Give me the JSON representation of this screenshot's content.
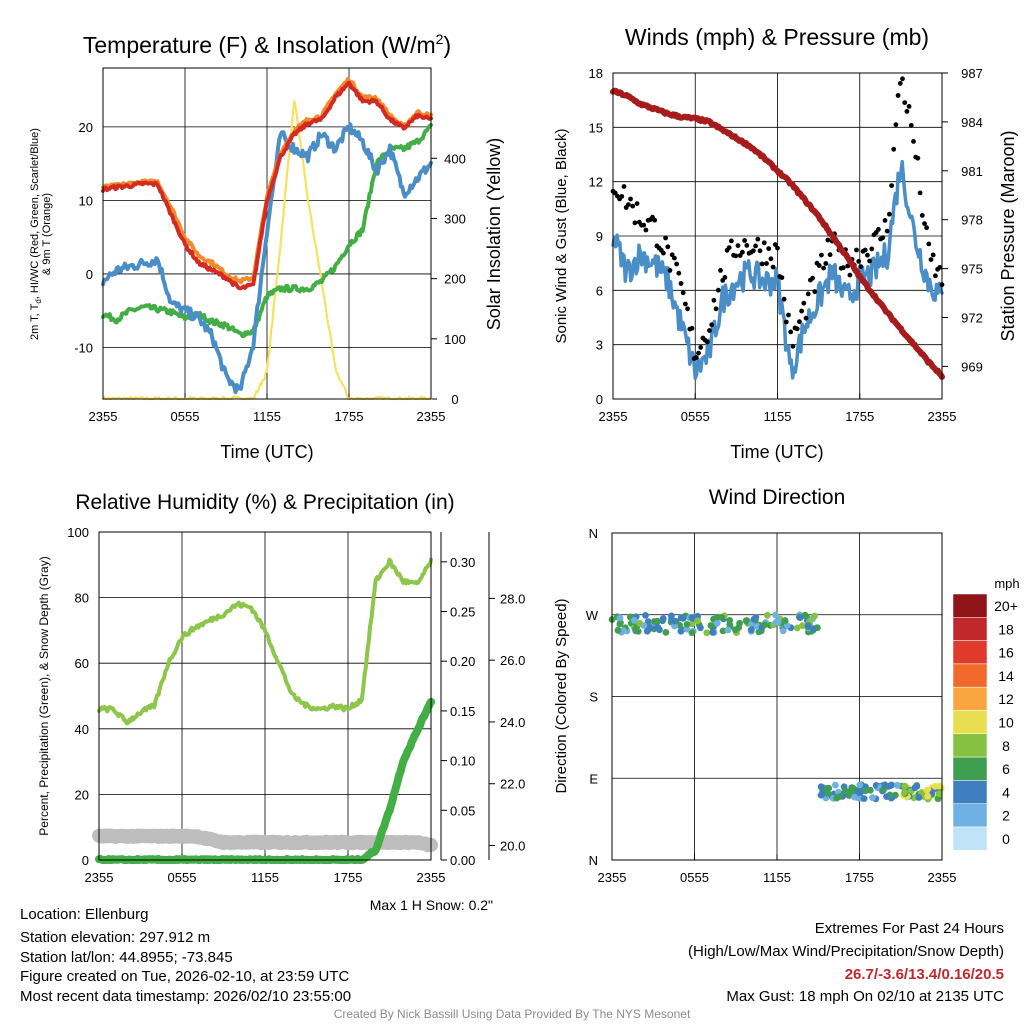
{
  "colors": {
    "red": "#d42a24",
    "orange": "#f38a2a",
    "blue": "#4a8ec8",
    "green": "#44ae46",
    "yellow": "#f7e15e",
    "maroon": "#a61c1c",
    "lightgreen": "#8dc64a",
    "gray": "#bdbdbd",
    "extremes": "#c0282c",
    "credit": "#8c8c8c"
  },
  "time_ticks": [
    "2355",
    "0555",
    "1155",
    "1755",
    "2355"
  ],
  "chart_data": [
    {
      "id": "temp",
      "type": "line",
      "title": "Temperature (F) & Insolation (W/m",
      "title_sup": "2",
      "title_end": ")",
      "xlabel": "Time (UTC)",
      "ylabel_lines": [
        "2m T, T",
        "d",
        ", HI/WC (Red, Green, Scarlet/Blue)",
        "& 9m T (Orange)"
      ],
      "y2label": "Solar Insolation (Yellow)",
      "ylim": [
        -17,
        28
      ],
      "y2lim": [
        0,
        550
      ],
      "yticks": [
        -10,
        0,
        10,
        20
      ],
      "y2ticks": [
        0,
        100,
        200,
        300,
        400
      ],
      "x": [
        0,
        1,
        2,
        3,
        4,
        5,
        6,
        7,
        8,
        9,
        10,
        11,
        12,
        13,
        14,
        15,
        16,
        17,
        18,
        19,
        20,
        21,
        22,
        23,
        24
      ],
      "series": [
        {
          "name": "2m T",
          "color": "red",
          "axis": "y1",
          "values": [
            11.5,
            11.8,
            12,
            12.3,
            12.2,
            8,
            4,
            1.5,
            0.5,
            -0.5,
            -2,
            -1.5,
            10,
            16,
            19,
            20.5,
            21,
            24,
            26,
            23.5,
            23.5,
            21,
            19.8,
            21.5,
            21
          ]
        },
        {
          "name": "9m T",
          "color": "orange",
          "axis": "y1",
          "values": [
            11.8,
            12,
            12.3,
            12.5,
            12.5,
            9,
            5,
            2.5,
            1.5,
            0,
            -1,
            -0.5,
            10.5,
            16.5,
            19.5,
            21,
            21.5,
            24.5,
            26.5,
            24,
            24,
            21.5,
            20,
            22,
            21.5
          ]
        },
        {
          "name": "HI/WC",
          "color": "blue",
          "axis": "y1",
          "values": [
            -1,
            0.5,
            1,
            1.5,
            2,
            -4,
            -5,
            -6,
            -8.5,
            -14,
            -16,
            -9.5,
            6,
            19,
            17,
            16,
            19,
            17,
            20,
            18,
            14,
            17,
            11,
            13,
            15
          ]
        },
        {
          "name": "Td",
          "color": "green",
          "axis": "y1",
          "values": [
            -5.5,
            -6.2,
            -5,
            -4.5,
            -4.8,
            -5.2,
            -6,
            -5.5,
            -6.5,
            -7,
            -8.2,
            -7.8,
            -3,
            -2,
            -2,
            -2,
            -1,
            1,
            4,
            6,
            15,
            17,
            17,
            18,
            20
          ]
        },
        {
          "name": "Insolation",
          "color": "yellow",
          "axis": "y2",
          "values": [
            0,
            0,
            0,
            0,
            0,
            0,
            0,
            0,
            0,
            0,
            0,
            0,
            45,
            260,
            498,
            330,
            195,
            50,
            0,
            0,
            0,
            0,
            0,
            0,
            0
          ]
        }
      ]
    },
    {
      "id": "wind",
      "type": "line",
      "title": "Winds (mph) & Pressure (mb)",
      "xlabel": "Time (UTC)",
      "ylabel": "Sonic Wind & Gust (Blue, Black)",
      "y2label": "Station Pressure (Maroon)",
      "ylim": [
        0,
        18
      ],
      "y2lim": [
        967,
        987
      ],
      "yticks": [
        0,
        3,
        6,
        9,
        12,
        15,
        18
      ],
      "y2ticks": [
        969,
        972,
        975,
        978,
        981,
        984,
        987
      ],
      "x": [
        0,
        1,
        2,
        3,
        4,
        5,
        6,
        7,
        8,
        9,
        10,
        11,
        12,
        13,
        14,
        15,
        16,
        17,
        18,
        19,
        20,
        21,
        22,
        23,
        24
      ],
      "series": [
        {
          "name": "Sonic Wind",
          "color": "blue",
          "axis": "y1",
          "values": [
            9,
            7,
            8,
            7.5,
            6.5,
            4,
            1.5,
            2.5,
            5.5,
            6.5,
            7,
            6.5,
            6.5,
            1.5,
            4,
            5.5,
            7,
            5.5,
            6.5,
            7,
            8,
            13,
            9,
            6.5,
            5.5
          ]
        },
        {
          "name": "Gust",
          "color": "black",
          "axis": "y1",
          "values": [
            12,
            11,
            10,
            9.5,
            8,
            6,
            2.5,
            4,
            7,
            8.5,
            8.5,
            8.2,
            8,
            3,
            5,
            7,
            8.5,
            7.5,
            8,
            8.5,
            9.5,
            18,
            14,
            8,
            6.5
          ]
        },
        {
          "name": "Pressure",
          "color": "maroon",
          "axis": "y2",
          "values": [
            985.9,
            985.6,
            985.1,
            984.8,
            984.5,
            984.3,
            984.2,
            984,
            983.5,
            983,
            982.5,
            981.8,
            981,
            980.2,
            979.2,
            978.2,
            977,
            975.8,
            974.5,
            973.4,
            972.3,
            971.3,
            970.3,
            969.3,
            968.4
          ]
        }
      ]
    },
    {
      "id": "rh",
      "type": "line",
      "title": "Relative Humidity (%) & Precipitation (in)",
      "ylabel": "Percent, Precipitation (Green), & Snow Depth (Gray)",
      "ylim": [
        0,
        100
      ],
      "y2lim": [
        0,
        0.33
      ],
      "y3lim": [
        19.53,
        30.15
      ],
      "yticks": [
        0,
        20,
        40,
        60,
        80,
        100
      ],
      "y2ticks": [
        "0.00",
        "0.05",
        "0.10",
        "0.15",
        "0.20",
        "0.25",
        "0.30"
      ],
      "y3ticks": [
        "20.0",
        "22.0",
        "24.0",
        "26.0",
        "28.0"
      ],
      "x": [
        0,
        1,
        2,
        3,
        4,
        5,
        6,
        7,
        8,
        9,
        10,
        11,
        12,
        13,
        14,
        15,
        16,
        17,
        18,
        19,
        20,
        21,
        22,
        23,
        24
      ],
      "series": [
        {
          "name": "RH",
          "color": "lightgreen",
          "axis": "y1",
          "values": [
            46,
            46,
            42,
            45,
            47,
            60,
            68,
            71,
            73,
            75,
            78,
            77,
            70,
            60,
            50,
            47,
            46,
            47,
            46,
            49,
            85,
            91,
            85,
            84,
            91
          ]
        },
        {
          "name": "Precipitation",
          "color": "green",
          "axis": "y2",
          "values": [
            0,
            0,
            0,
            0,
            0,
            0,
            0,
            0,
            0,
            0,
            0,
            0,
            0,
            0,
            0,
            0,
            0,
            0,
            0,
            0,
            0.01,
            0.05,
            0.1,
            0.13,
            0.16
          ]
        },
        {
          "name": "Snow Depth",
          "color": "gray",
          "axis": "y3",
          "values": [
            20.3,
            20.3,
            20.3,
            20.3,
            20.3,
            20.3,
            20.3,
            20.3,
            20.2,
            20.1,
            20.1,
            20.1,
            20.1,
            20.1,
            20.1,
            20.1,
            20.1,
            20.1,
            20.1,
            20.1,
            20.1,
            20.1,
            20.1,
            20.1,
            20.0
          ]
        }
      ],
      "note": "Max 1 H Snow: 0.2\""
    },
    {
      "id": "dir",
      "type": "scatter",
      "title": "Wind Direction",
      "ylabel": "Direction (Colored By Speed)",
      "yticks": [
        "N",
        "E",
        "S",
        "W",
        "N"
      ],
      "ydeg": [
        0,
        90,
        180,
        270,
        360
      ],
      "legend_title": "mph",
      "legend_labels": [
        "20+",
        "18",
        "16",
        "14",
        "12",
        "10",
        "8",
        "6",
        "4",
        "2",
        "0"
      ],
      "legend_colors": [
        "#8e1417",
        "#c0282c",
        "#e03a2c",
        "#f16a2c",
        "#f9a640",
        "#e8de50",
        "#86c242",
        "#3f9f4f",
        "#3f7fc0",
        "#6fb1e3",
        "#bfe4f8"
      ],
      "cluster_early": {
        "t_range": [
          0,
          15
        ],
        "deg_center": 260,
        "deg_spread": 10
      },
      "cluster_late": {
        "t_range": [
          15.2,
          24
        ],
        "deg_center": 75,
        "deg_spread": 8
      }
    }
  ],
  "info": {
    "location": "Location: Ellenburg",
    "elevation": "Station elevation: 297.912 m",
    "latlon": "Station lat/lon: 44.8955; -73.845",
    "created": "Figure created on Tue, 2026-02-10, at 23:59 UTC",
    "recent": "Most recent data timestamp: 2026/02/10 23:55:00"
  },
  "extremes": {
    "title": "Extremes For Past 24 Hours",
    "subtitle": "(High/Low/Max Wind/Precipitation/Snow Depth)",
    "values": "26.7/-3.6/13.4/0.16/20.5",
    "gust": "Max Gust: 18 mph On 02/10 at 2135 UTC"
  },
  "credit": "Created By Nick Bassill Using Data Provided By The NYS Mesonet"
}
